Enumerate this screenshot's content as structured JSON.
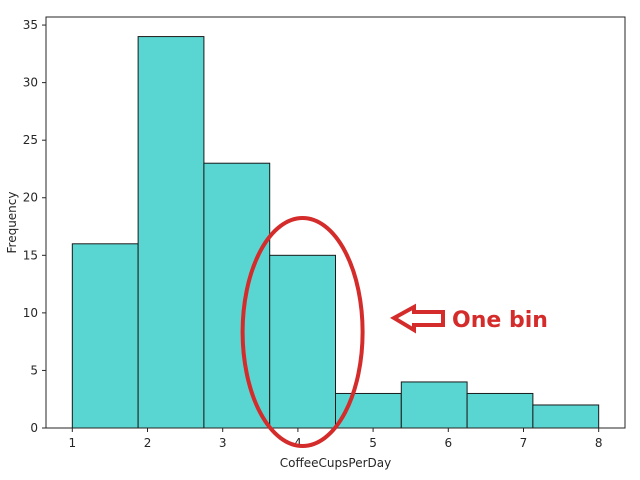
{
  "chart_data": {
    "type": "bar",
    "subtype": "histogram",
    "bins": [
      {
        "start": 1.0,
        "end": 1.875,
        "count": 16
      },
      {
        "start": 1.875,
        "end": 2.75,
        "count": 34
      },
      {
        "start": 2.75,
        "end": 3.625,
        "count": 23
      },
      {
        "start": 3.625,
        "end": 4.5,
        "count": 15
      },
      {
        "start": 4.5,
        "end": 5.375,
        "count": 3
      },
      {
        "start": 5.375,
        "end": 6.25,
        "count": 4
      },
      {
        "start": 6.25,
        "end": 7.125,
        "count": 3
      },
      {
        "start": 7.125,
        "end": 8.0,
        "count": 2
      }
    ],
    "xlabel": "CoffeeCupsPerDay",
    "ylabel": "Frequency",
    "xlim": [
      0.65,
      8.35
    ],
    "ylim": [
      0,
      35.7
    ],
    "xticks": [
      1,
      2,
      3,
      4,
      5,
      6,
      7,
      8
    ],
    "yticks": [
      0,
      5,
      10,
      15,
      20,
      25,
      30,
      35
    ],
    "grid": false,
    "colors": {
      "bar_fill": "#5ad6d2",
      "bar_edge": "#1a1a1a",
      "annotation": "#d42b2b"
    },
    "annotation": {
      "text": "One bin",
      "highlighted_bin_index": 3,
      "marks": [
        "ellipse",
        "arrow"
      ]
    }
  }
}
